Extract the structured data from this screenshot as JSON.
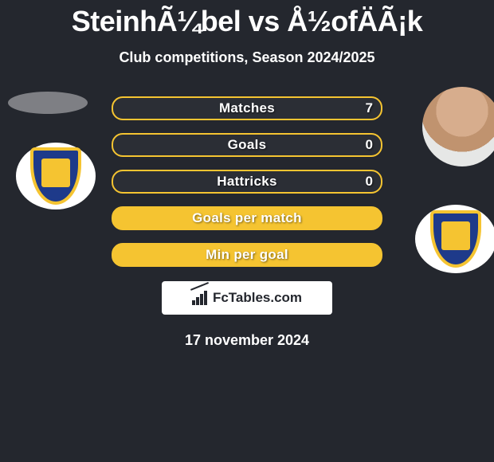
{
  "title": "SteinhÃ¼bel vs Å½ofÄÃ¡k",
  "subtitle": "Club competitions, Season 2024/2025",
  "date": "17 november 2024",
  "branding": "FcTables.com",
  "colors": {
    "background": "#24272e",
    "accent": "#f5c431",
    "text": "#ffffff",
    "brandBg": "#ffffff",
    "brandText": "#24272e",
    "crestPrimary": "#1e3a8a",
    "crestSecondary": "#f5c431"
  },
  "bars": [
    {
      "label": "Matches",
      "right_value": "7",
      "filled": false
    },
    {
      "label": "Goals",
      "right_value": "0",
      "filled": false
    },
    {
      "label": "Hattricks",
      "right_value": "0",
      "filled": false
    },
    {
      "label": "Goals per match",
      "right_value": "",
      "filled": true
    },
    {
      "label": "Min per goal",
      "right_value": "",
      "filled": true
    }
  ]
}
